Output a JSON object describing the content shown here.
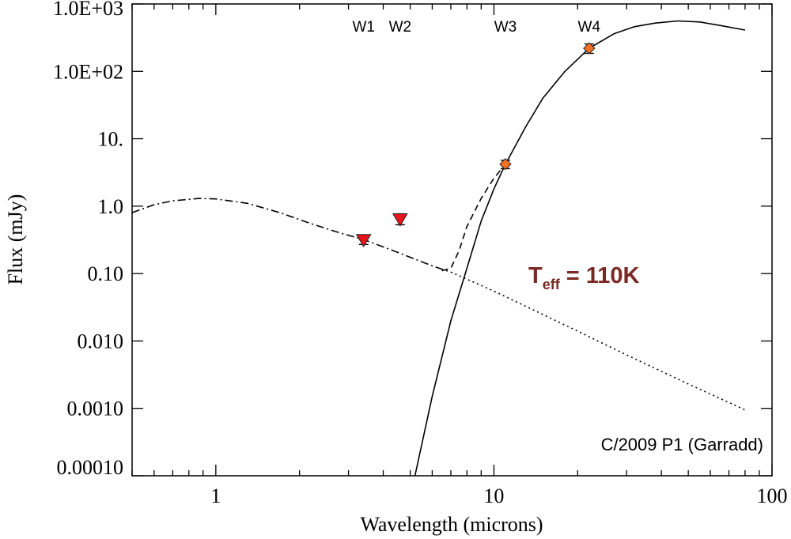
{
  "chart_data": {
    "type": "scatter",
    "title": "",
    "xlabel": "Wavelength (microns)",
    "ylabel": "Flux (mJy)",
    "x_scale": "log",
    "y_scale": "log",
    "xlim": [
      0.5,
      100
    ],
    "ylim": [
      0.0001,
      1000
    ],
    "x_ticks": [
      {
        "value": 1,
        "label": "1"
      },
      {
        "value": 10,
        "label": "10"
      },
      {
        "value": 100,
        "label": "100"
      }
    ],
    "y_ticks": [
      {
        "value": 0.0001,
        "label": "0.00010"
      },
      {
        "value": 0.001,
        "label": "0.0010"
      },
      {
        "value": 0.01,
        "label": "0.010"
      },
      {
        "value": 0.1,
        "label": "0.10"
      },
      {
        "value": 1,
        "label": "1.0"
      },
      {
        "value": 10,
        "label": "10."
      },
      {
        "value": 100,
        "label": "1.0E+02"
      },
      {
        "value": 1000,
        "label": "1.0E+03"
      }
    ],
    "grid": false,
    "band_labels": [
      {
        "label": "W1",
        "x": 3.4
      },
      {
        "label": "W2",
        "x": 4.6
      },
      {
        "label": "W3",
        "x": 11
      },
      {
        "label": "W4",
        "x": 22
      }
    ],
    "points": [
      {
        "band": "W1",
        "x": 3.4,
        "y": 0.32,
        "err": 0.05,
        "marker": "triangle-down",
        "color": "#e8141c"
      },
      {
        "band": "W2",
        "x": 4.6,
        "y": 0.65,
        "err": 0.12,
        "marker": "triangle-down",
        "color": "#e8141c"
      },
      {
        "band": "W3",
        "x": 11,
        "y": 4.2,
        "err": 0.6,
        "marker": "diamond",
        "color": "#f36f21"
      },
      {
        "band": "W4",
        "x": 22,
        "y": 220,
        "err": 35,
        "marker": "diamond",
        "color": "#f36f21"
      }
    ],
    "curves": [
      {
        "style": "dash-dot",
        "x": [
          0.5,
          0.6,
          0.7,
          0.87,
          1.0,
          1.3,
          1.7,
          2.2,
          2.8,
          3.4,
          4.6,
          6.0,
          7.0
        ],
        "y": [
          0.8,
          1.05,
          1.2,
          1.3,
          1.28,
          1.1,
          0.8,
          0.55,
          0.4,
          0.32,
          0.2,
          0.13,
          0.105
        ]
      },
      {
        "style": "dotted",
        "x": [
          7.0,
          10,
          20,
          30,
          50,
          80
        ],
        "y": [
          0.105,
          0.055,
          0.014,
          0.0062,
          0.0023,
          0.00095
        ]
      },
      {
        "style": "dashed",
        "x": [
          6.5,
          7.0,
          7.5,
          8.0,
          9.0,
          10.0,
          11.0
        ],
        "y": [
          0.11,
          0.12,
          0.22,
          0.5,
          1.3,
          2.6,
          4.2
        ]
      },
      {
        "style": "solid",
        "x": [
          5.2,
          6.0,
          7.0,
          8.0,
          9.0,
          10.0,
          11.0,
          13.0,
          15.0,
          18.0,
          22.0,
          27.0,
          32.0,
          38.0,
          46.0,
          55.0,
          65.0,
          80.0
        ],
        "y": [
          0.0001,
          0.0015,
          0.02,
          0.12,
          0.6,
          1.8,
          4.2,
          15,
          40,
          100,
          220,
          360,
          460,
          520,
          560,
          540,
          480,
          410
        ]
      }
    ],
    "annotations": {
      "temperature": {
        "main": "T",
        "sub": "eff",
        "rest": " = 110K",
        "color": "#7a2a25"
      },
      "object": "C/2009 P1 (Garradd)"
    }
  }
}
